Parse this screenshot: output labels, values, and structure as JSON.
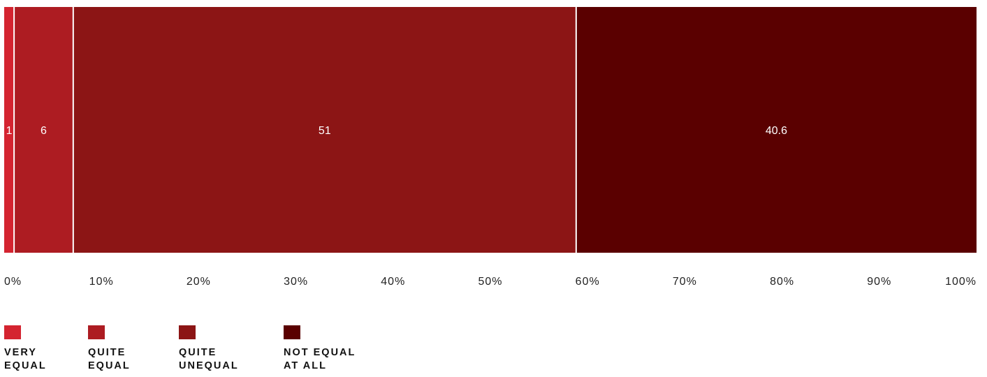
{
  "chart_data": {
    "type": "bar",
    "orientation": "horizontal",
    "stacked": true,
    "x_ticks": [
      "0%",
      "10%",
      "20%",
      "30%",
      "40%",
      "50%",
      "60%",
      "70%",
      "80%",
      "90%",
      "100%"
    ],
    "xlim": [
      0,
      100
    ],
    "grid": false,
    "legend_position": "bottom-left",
    "segments": [
      {
        "name": "VERY EQUAL",
        "value": 1,
        "label": "1",
        "color": "#d42430"
      },
      {
        "name": "QUITE EQUAL",
        "value": 6,
        "label": "6",
        "color": "#ad1c22"
      },
      {
        "name": "QUITE UNEQUAL",
        "value": 51,
        "label": "51",
        "color": "#8c1515"
      },
      {
        "name": "NOT EQUAL AT ALL",
        "value": 40.6,
        "label": "40.6",
        "color": "#5a0000"
      }
    ]
  },
  "legend": [
    {
      "label": "VERY\nEQUAL",
      "color": "#d42430"
    },
    {
      "label": "QUITE\nEQUAL",
      "color": "#ad1c22"
    },
    {
      "label": "QUITE\nUNEQUAL",
      "color": "#8c1515"
    },
    {
      "label": "NOT EQUAL\nAT ALL",
      "color": "#5a0000"
    }
  ]
}
